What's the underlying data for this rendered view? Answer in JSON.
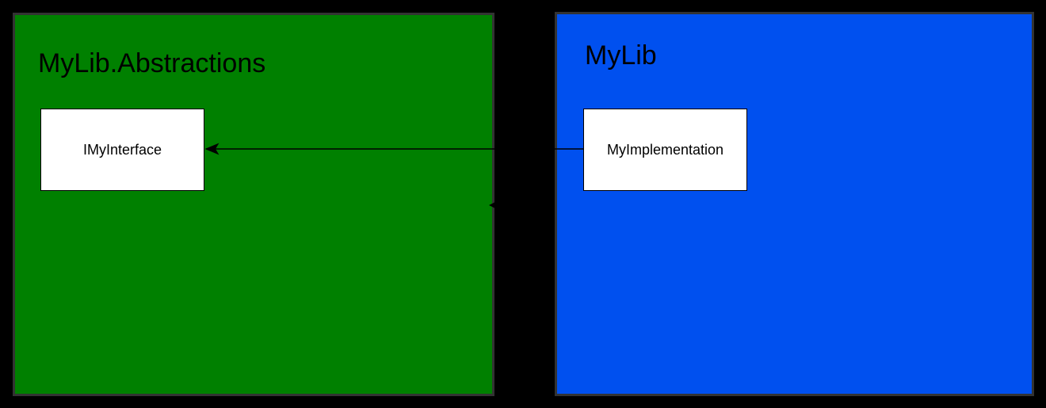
{
  "packages": {
    "abstractions": {
      "title": "MyLib.Abstractions",
      "color": "#008000"
    },
    "mylib": {
      "title": "MyLib",
      "color": "#0050ef"
    }
  },
  "classes": {
    "interface": {
      "label": "IMyInterface"
    },
    "implementation": {
      "label": "MyImplementation"
    }
  },
  "colors": {
    "background": "#000000",
    "package_border": "#333333",
    "box_fill": "#ffffff",
    "line": "#000000"
  }
}
